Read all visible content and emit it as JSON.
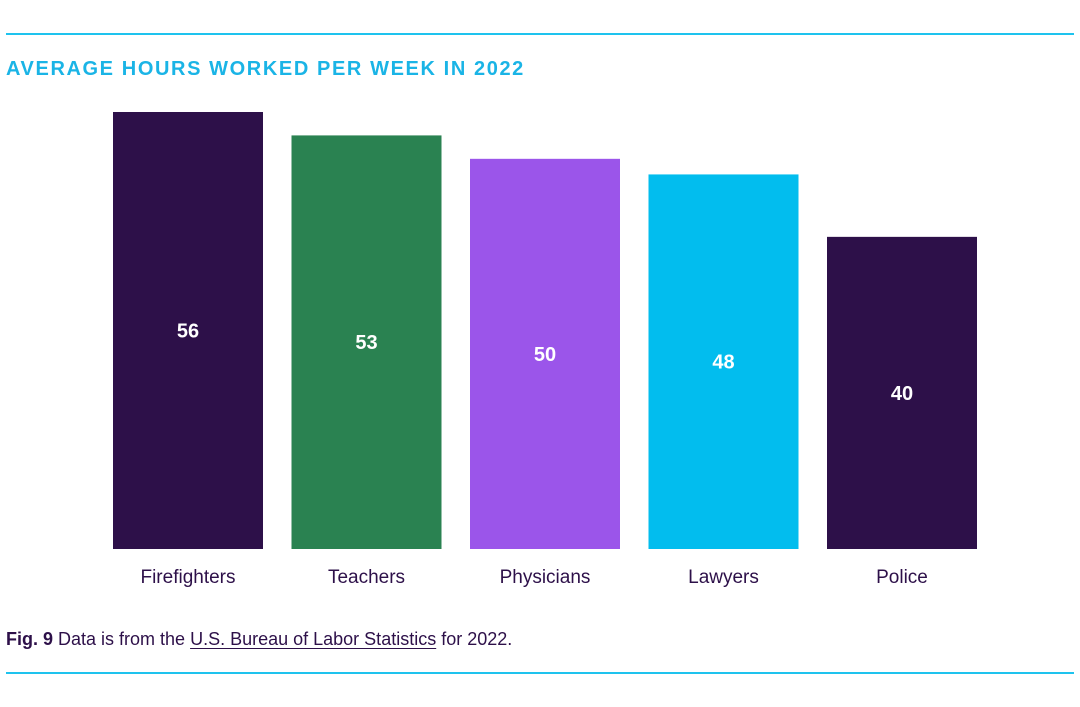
{
  "colors": {
    "rule": "#1ec3ee",
    "title": "#1ab4e6",
    "text": "#2d1049"
  },
  "chart_data": {
    "type": "bar",
    "title": "AVERAGE HOURS WORKED PER WEEK IN 2022",
    "categories": [
      "Firefighters",
      "Teachers",
      "Physicians",
      "Lawyers",
      "Police"
    ],
    "values": [
      56,
      53,
      50,
      48,
      40
    ],
    "bar_colors": [
      "#2d1049",
      "#2a8251",
      "#9b55ea",
      "#02bdee",
      "#2d1049"
    ],
    "data_labels": [
      "56",
      "53",
      "50",
      "48",
      "40"
    ],
    "xlabel": "",
    "ylabel": "",
    "ylim": [
      0,
      56
    ],
    "grid": false,
    "legend": "none"
  },
  "caption": {
    "fig_label": "Fig. 9",
    "text_before": " Data is from the ",
    "link_text": "U.S. Bureau of Labor Statistics",
    "text_after": " for 2022."
  }
}
